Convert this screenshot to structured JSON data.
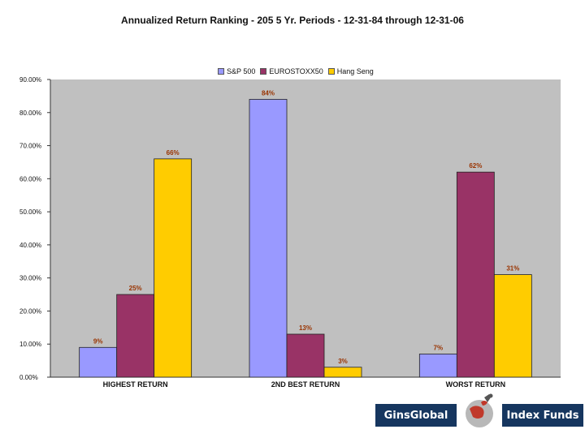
{
  "chart_data": {
    "type": "bar",
    "title": "Annualized Return Ranking - 205 5 Yr. Periods - 12-31-84 through 12-31-06",
    "categories": [
      "HIGHEST RETURN",
      "2ND BEST RETURN",
      "WORST RETURN"
    ],
    "series": [
      {
        "name": "S&P 500",
        "values": [
          9,
          84,
          7
        ],
        "labels": [
          "9%",
          "84%",
          "7%"
        ],
        "color": "#9999ff"
      },
      {
        "name": "EUROSTOXX50",
        "values": [
          25,
          13,
          62
        ],
        "labels": [
          "25%",
          "13%",
          "62%"
        ],
        "color": "#993366"
      },
      {
        "name": "Hang Seng",
        "values": [
          66,
          3,
          31
        ],
        "labels": [
          "66%",
          "3%",
          "31%"
        ],
        "color": "#ffcc00"
      }
    ],
    "y_ticks": [
      "0.00%",
      "10.00%",
      "20.00%",
      "30.00%",
      "40.00%",
      "50.00%",
      "60.00%",
      "70.00%",
      "80.00%",
      "90.00%"
    ],
    "ylim": [
      0,
      90
    ],
    "plot_background": "#c0c0c0",
    "label_color": "#993300",
    "legend_position": "top-center",
    "grid": false
  },
  "logo": {
    "left_text": "GinsGlobal",
    "right_text": "Index Funds",
    "icon": "globe-with-figure-icon",
    "color": "#16365f"
  }
}
